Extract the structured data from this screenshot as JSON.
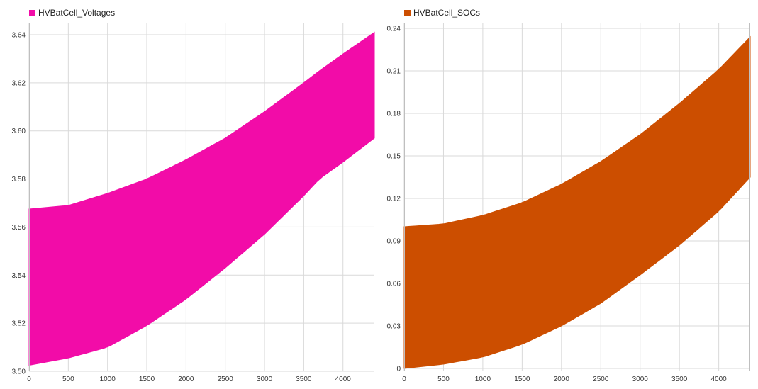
{
  "chart_data": [
    {
      "type": "area",
      "title": "",
      "xlabel": "",
      "ylabel": "",
      "legend": [
        {
          "name": "HVBatCell_Voltages",
          "color": "#f20ca8"
        }
      ],
      "xlim": [
        0,
        4400
      ],
      "ylim": [
        3.5,
        3.645
      ],
      "xticks": [
        0,
        500,
        1000,
        1500,
        2000,
        2500,
        3000,
        3500,
        4000
      ],
      "yticks": [
        "3.50",
        "3.52",
        "3.54",
        "3.56",
        "3.58",
        "3.60",
        "3.62",
        "3.64"
      ],
      "grid": true,
      "legend_position": "top-left",
      "series": [
        {
          "name": "HVBatCell_Voltages",
          "color": "#f20ca8",
          "x": [
            0,
            500,
            1000,
            1500,
            2000,
            2500,
            3000,
            3500,
            3700,
            4000,
            4400
          ],
          "upper": [
            3.5675,
            3.569,
            3.574,
            3.58,
            3.588,
            3.597,
            3.608,
            3.62,
            3.625,
            3.632,
            3.641
          ],
          "lower": [
            3.5025,
            3.5055,
            3.51,
            3.519,
            3.53,
            3.543,
            3.557,
            3.573,
            3.58,
            3.587,
            3.597
          ]
        }
      ]
    },
    {
      "type": "area",
      "title": "",
      "xlabel": "",
      "ylabel": "",
      "legend": [
        {
          "name": "HVBatCell_SOCs",
          "color": "#cc4e00"
        }
      ],
      "xlim": [
        0,
        4400
      ],
      "ylim": [
        -0.002,
        0.244
      ],
      "xticks": [
        0,
        500,
        1000,
        1500,
        2000,
        2500,
        3000,
        3500,
        4000
      ],
      "yticks": [
        "0",
        "0.03",
        "0.06",
        "0.09",
        "0.12",
        "0.15",
        "0.18",
        "0.21",
        "0.24"
      ],
      "grid": true,
      "legend_position": "top-left",
      "series": [
        {
          "name": "HVBatCell_SOCs",
          "color": "#cc4e00",
          "x": [
            0,
            500,
            1000,
            1500,
            2000,
            2500,
            3000,
            3500,
            4000,
            4400
          ],
          "upper": [
            0.1,
            0.102,
            0.108,
            0.117,
            0.13,
            0.146,
            0.165,
            0.187,
            0.211,
            0.234
          ],
          "lower": [
            0.0,
            0.003,
            0.008,
            0.017,
            0.03,
            0.046,
            0.066,
            0.087,
            0.111,
            0.135
          ]
        }
      ]
    }
  ]
}
